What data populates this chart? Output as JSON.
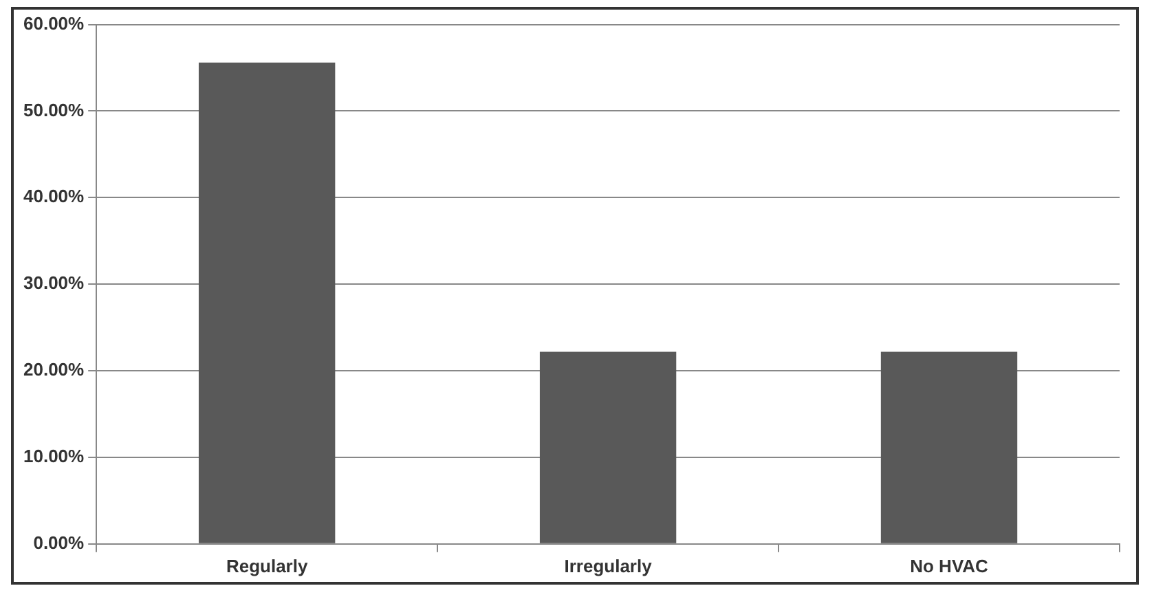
{
  "chart_data": {
    "type": "bar",
    "categories": [
      "Regularly",
      "Irregularly",
      "No HVAC"
    ],
    "values": [
      55.6,
      22.2,
      22.2
    ],
    "color": "#595959",
    "ylim": [
      0,
      60
    ],
    "yticks": [
      {
        "value": 0,
        "label": "0.00%"
      },
      {
        "value": 10,
        "label": "10.00%"
      },
      {
        "value": 20,
        "label": "20.00%"
      },
      {
        "value": 30,
        "label": "30.00%"
      },
      {
        "value": 40,
        "label": "40.00%"
      },
      {
        "value": 50,
        "label": "50.00%"
      },
      {
        "value": 60,
        "label": "60.00%"
      }
    ],
    "grid": "y",
    "legend": false
  }
}
